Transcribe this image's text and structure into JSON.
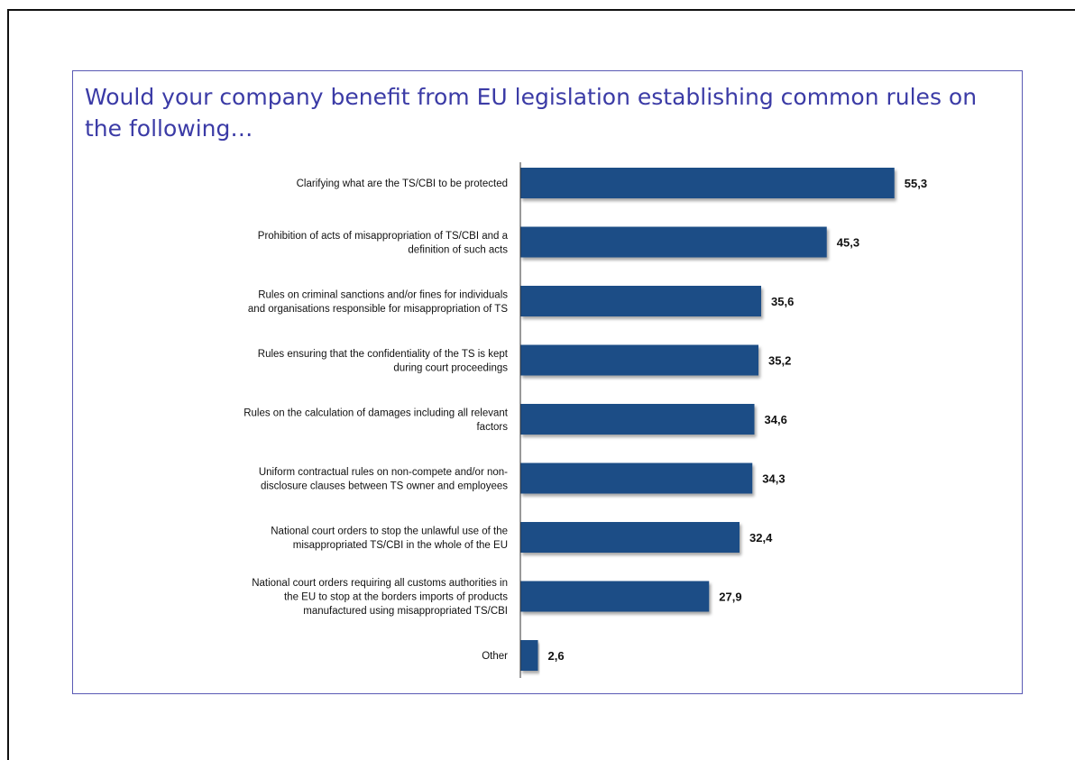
{
  "chart_data": {
    "type": "bar",
    "orientation": "horizontal",
    "title": "Would your company benefit from EU legislation establishing common rules on the following…",
    "categories": [
      [
        "Clarifying what are the TS/CBI to be protected"
      ],
      [
        "Prohibition of acts of misappropriation of TS/CBI and a",
        "definition of such acts"
      ],
      [
        "Rules on criminal sanctions and/or fines for individuals",
        "and organisations responsible for misappropriation of TS"
      ],
      [
        "Rules ensuring that the confidentiality of the TS is kept",
        "during court proceedings"
      ],
      [
        "Rules on the calculation of damages including all relevant",
        "factors"
      ],
      [
        "Uniform contractual rules on non-compete and/or non-",
        "disclosure clauses between TS owner and employees"
      ],
      [
        "National court orders to stop the unlawful use of the",
        "misappropriated TS/CBI in the whole of the EU"
      ],
      [
        "National court orders requiring all customs authorities in",
        "the EU to stop at the borders imports of products",
        "manufactured using misappropriated TS/CBI"
      ],
      [
        "Other"
      ]
    ],
    "values": [
      55.3,
      45.3,
      35.6,
      35.2,
      34.6,
      34.3,
      32.4,
      27.9,
      2.6
    ],
    "value_labels": [
      "55,3",
      "45,3",
      "35,6",
      "35,2",
      "34,6",
      "34,3",
      "32,4",
      "27,9",
      "2,6"
    ],
    "bar_color": "#1f4e86",
    "xlim": [
      0,
      60
    ],
    "grid": false,
    "legend": "none"
  }
}
